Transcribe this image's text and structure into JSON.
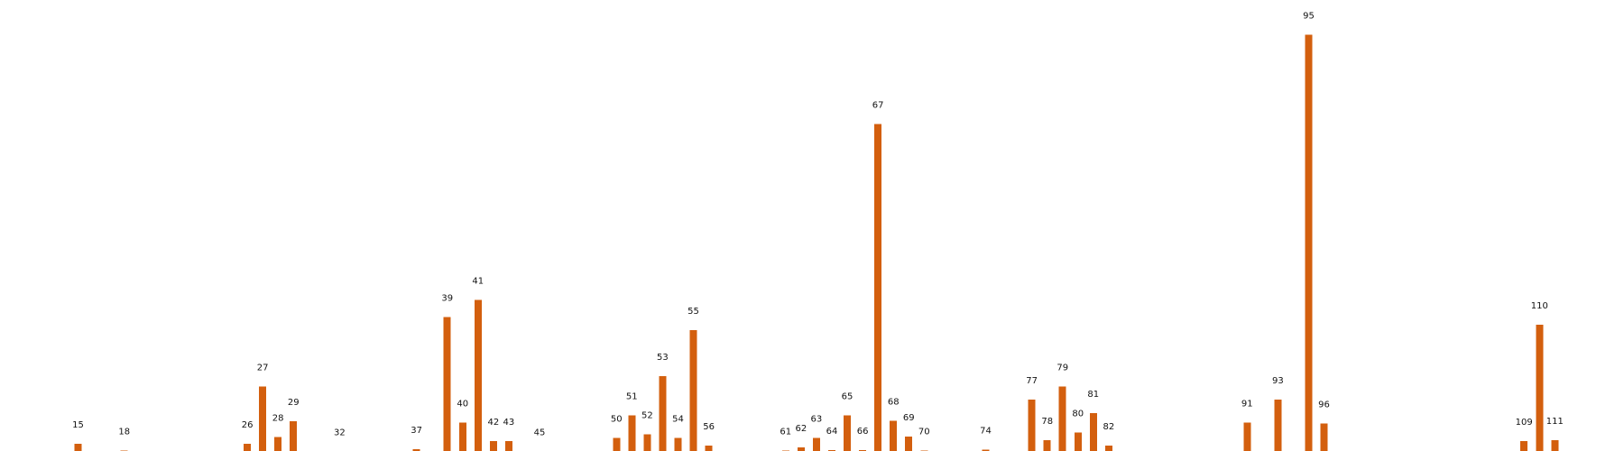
{
  "colors": {
    "bar": "#d35f0e",
    "background": "#ffffff",
    "label": "#111111"
  },
  "chart_data": {
    "type": "bar",
    "title": "",
    "xlabel": "",
    "ylabel": "",
    "axes_visible": false,
    "grid": false,
    "legend": "none",
    "categories": [
      "15",
      "18",
      "26",
      "27",
      "28",
      "29",
      "32",
      "37",
      "39",
      "40",
      "41",
      "42",
      "43",
      "45",
      "50",
      "51",
      "52",
      "53",
      "54",
      "55",
      "56",
      "61",
      "62",
      "63",
      "64",
      "65",
      "66",
      "67",
      "68",
      "69",
      "70",
      "74",
      "77",
      "78",
      "79",
      "80",
      "81",
      "82",
      "91",
      "93",
      "95",
      "96",
      "109",
      "110",
      "111"
    ],
    "values": [
      2.0,
      0.5,
      2.0,
      14.5,
      3.5,
      6.9,
      0.3,
      0.8,
      29.8,
      6.6,
      33.5,
      2.6,
      2.6,
      0.3,
      3.3,
      8.2,
      4.1,
      16.8,
      3.3,
      26.9,
      1.6,
      0.5,
      1.2,
      3.3,
      0.6,
      8.2,
      0.6,
      72.1,
      7.0,
      3.6,
      0.5,
      0.7,
      11.7,
      2.8,
      14.5,
      4.5,
      8.7,
      1.6,
      6.6,
      11.7,
      91.7,
      6.4,
      2.6,
      28.1,
      2.8
    ],
    "ylim": [
      0,
      95
    ]
  }
}
